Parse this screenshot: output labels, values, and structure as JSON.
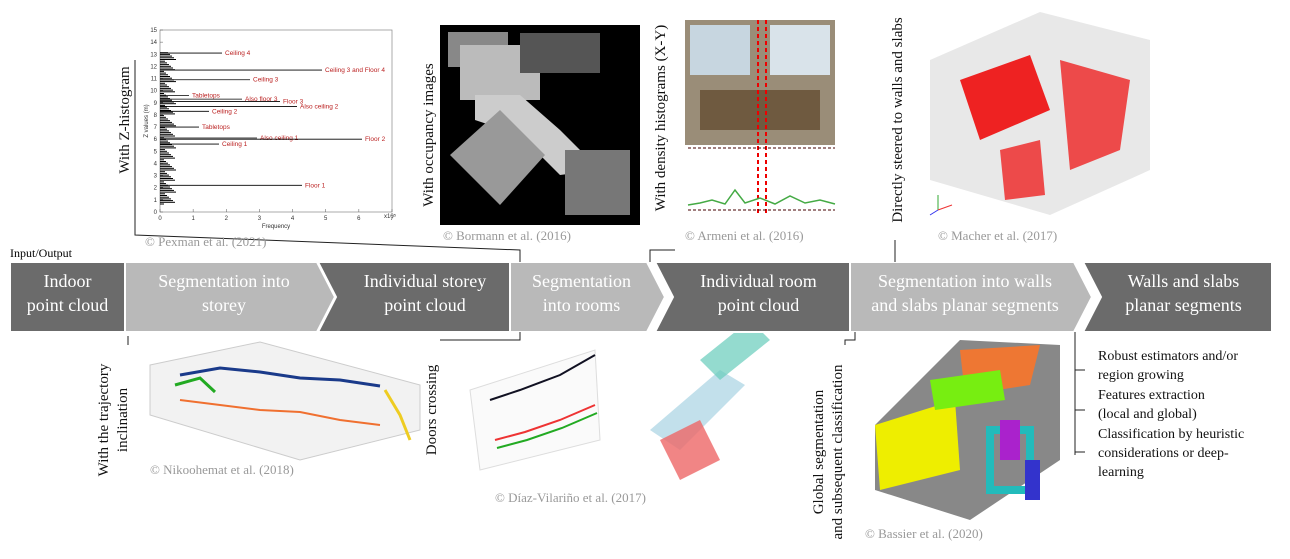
{
  "input_label": "Input/Output",
  "steps": [
    {
      "lines": [
        "Indoor",
        "point cloud"
      ]
    },
    {
      "lines": [
        "Segmentation into",
        "storey"
      ]
    },
    {
      "lines": [
        "Individual storey",
        "point cloud"
      ]
    },
    {
      "lines": [
        "Segmentation",
        "into rooms"
      ]
    },
    {
      "lines": [
        "Individual room",
        "point cloud"
      ]
    },
    {
      "lines": [
        "Segmentation into walls",
        "and slabs planar segments"
      ]
    },
    {
      "lines": [
        "Walls and slabs",
        "planar segments"
      ]
    }
  ],
  "methods_top": [
    {
      "lines": [
        "With Z-histogram"
      ],
      "credit": "© Pexman et al. (2021)"
    },
    {
      "lines": [
        "With occupancy images"
      ],
      "credit": "© Bormann et al. (2016)"
    },
    {
      "lines": [
        "With density histograms  (X-Y)"
      ],
      "credit": "© Armeni et al. (2016)"
    },
    {
      "lines": [
        "Directly  steered to walls  and slabs"
      ],
      "credit": "© Macher et al. (2017)"
    }
  ],
  "methods_bottom": [
    {
      "lines": [
        "With the trajectory",
        "inclination"
      ],
      "credit": "© Nikoohemat et al. (2018)"
    },
    {
      "lines": [
        "Doors crossing"
      ],
      "credit": "© Díaz-Vilariño  et al. (2017)"
    },
    {
      "lines": [
        "Global  segmentation",
        "and subsequent classification"
      ],
      "credit": "© Bassier et al. (2020)"
    }
  ],
  "techniques": [
    {
      "lines": [
        "Robust estimators  and/or",
        "region growing"
      ]
    },
    {
      "lines": [
        "Features extraction",
        "(local and global)"
      ]
    },
    {
      "lines": [
        "Classification by heuristic",
        "considerations or deep-",
        "learning"
      ]
    }
  ],
  "z_histogram": {
    "y_label": "Z values (m)",
    "x_label": "Frequency",
    "x_scale": "x10⁵",
    "yticks": [
      0,
      1,
      2,
      3,
      4,
      5,
      6,
      7,
      8,
      9,
      10,
      11,
      12,
      13,
      14,
      15
    ],
    "xticks": [
      0,
      1,
      2,
      3,
      4,
      5,
      6,
      7
    ],
    "annotations": [
      {
        "text": "Ceiling 4",
        "z": 13.1
      },
      {
        "text": "Ceiling 3 and Floor 4",
        "z": 11.7
      },
      {
        "text": "Ceiling 3",
        "z": 10.9
      },
      {
        "text": "Tabletops",
        "z": 9.6
      },
      {
        "text": "Also floor 3",
        "z": 9.3
      },
      {
        "text": "Floor 3",
        "z": 9.1
      },
      {
        "text": "Also ceiling 2",
        "z": 8.7
      },
      {
        "text": "Ceiling 2",
        "z": 8.3
      },
      {
        "text": "Tabletops",
        "z": 7.0
      },
      {
        "text": "Also ceiling 1",
        "z": 6.1
      },
      {
        "text": "Floor 2",
        "z": 6.0
      },
      {
        "text": "Ceiling 1",
        "z": 5.6
      },
      {
        "text": "Floor 1",
        "z": 2.2
      }
    ]
  }
}
